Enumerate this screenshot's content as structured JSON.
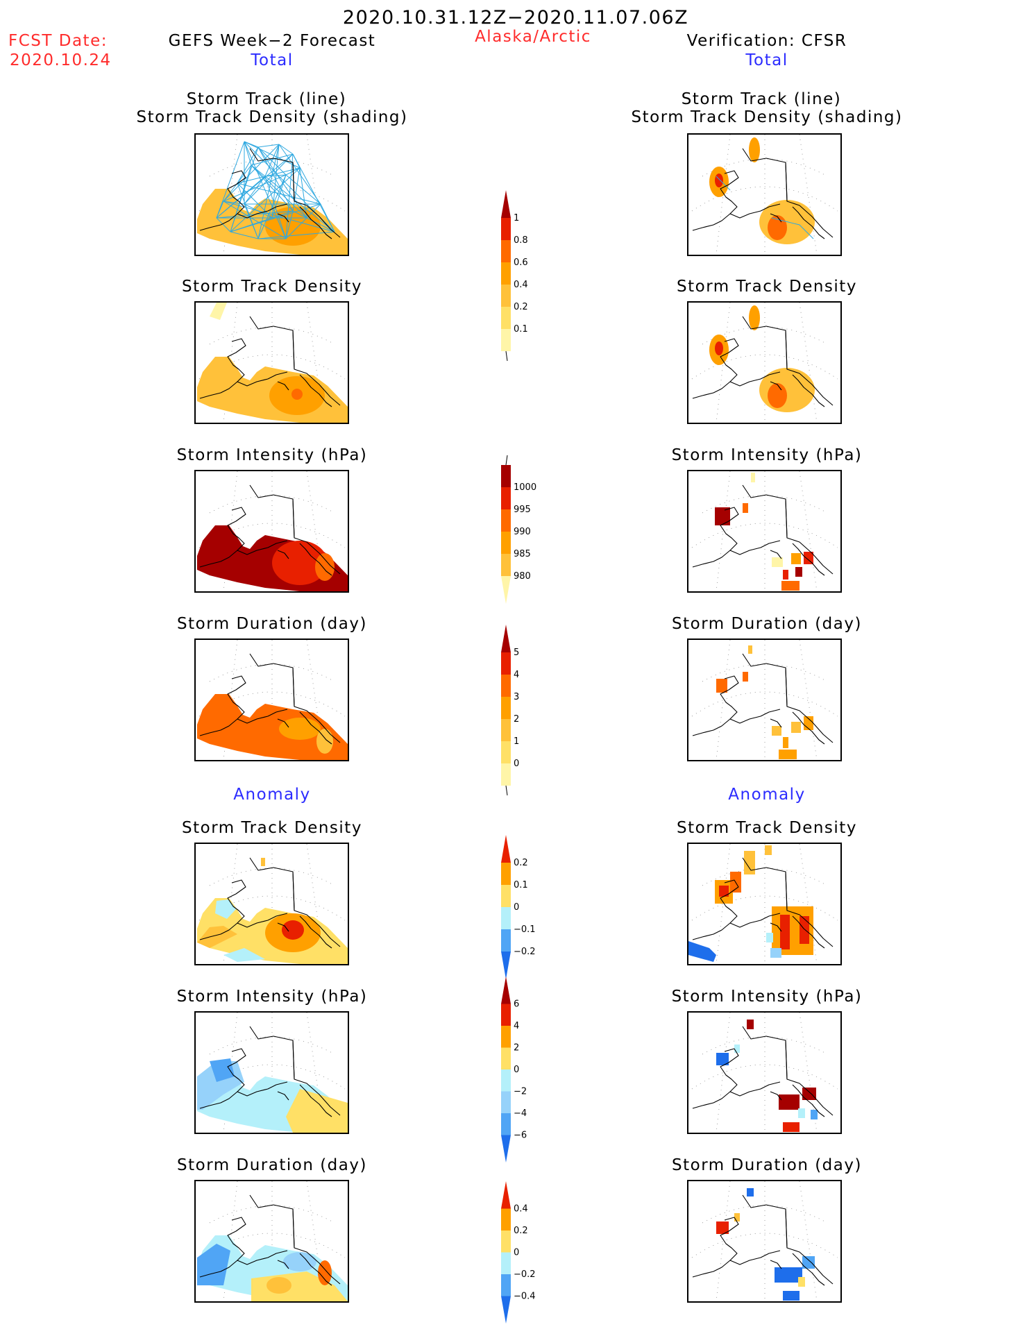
{
  "header": {
    "title": "2020.10.31.12Z−2020.11.07.06Z",
    "fcst_label": "FCST Date:",
    "fcst_date": "2020.10.24",
    "left_heading": "GEFS Week−2 Forecast",
    "region": "Alaska/Arctic",
    "right_heading": "Verification: CFSR",
    "left_total": "Total",
    "right_total": "Total",
    "left_anomaly": "Anomaly",
    "right_anomaly": "Anomaly"
  },
  "panels": {
    "p1_line1": "Storm Track (line)",
    "p1_line2": "Storm Track Density (shading)",
    "p2": "Storm Track Density",
    "p3": "Storm Intensity (hPa)",
    "p4": "Storm Duration (day)",
    "p5": "Storm Track Density",
    "p6": "Storm Intensity (hPa)",
    "p7": "Storm Duration (day)"
  },
  "colors": {
    "pale_yellow": "#fff5a8",
    "light_yellow": "#ffe066",
    "light_orange": "#ffc13a",
    "orange": "#ffa000",
    "dark_orange": "#ff6a00",
    "red": "#e82000",
    "dark_red": "#a50000",
    "light_cyan": "#b4f0fa",
    "light_blue": "#96d2fa",
    "mid_blue": "#50a5f5",
    "blue": "#1e6eeb",
    "track_line": "#2ea8e0"
  },
  "chart_data": [
    {
      "type": "heatmap",
      "name": "Storm Track Density colorbar",
      "levels": [
        0.1,
        0.2,
        0.4,
        0.6,
        0.8,
        1
      ],
      "tick_labels": [
        "0.1",
        "0.2",
        "0.4",
        "0.6",
        "0.8",
        "1"
      ]
    },
    {
      "type": "heatmap",
      "name": "Storm Intensity colorbar",
      "levels": [
        980,
        985,
        990,
        995,
        1000
      ],
      "tick_labels": [
        "980",
        "985",
        "990",
        "995",
        "1000"
      ]
    },
    {
      "type": "heatmap",
      "name": "Storm Duration colorbar",
      "levels": [
        0,
        1,
        2,
        3,
        4,
        5
      ],
      "tick_labels": [
        "0",
        "1",
        "2",
        "3",
        "4",
        "5"
      ]
    },
    {
      "type": "heatmap",
      "name": "Storm Track Density anomaly colorbar",
      "levels": [
        -0.2,
        -0.1,
        0,
        0.1,
        0.2
      ],
      "tick_labels": [
        "−0.2",
        "−0.1",
        "0",
        "0.1",
        "0.2"
      ]
    },
    {
      "type": "heatmap",
      "name": "Storm Intensity anomaly colorbar",
      "levels": [
        -6,
        -4,
        -2,
        0,
        2,
        4,
        6
      ],
      "tick_labels": [
        "−6",
        "−4",
        "−2",
        "0",
        "2",
        "4",
        "6"
      ]
    },
    {
      "type": "heatmap",
      "name": "Storm Duration anomaly colorbar",
      "levels": [
        -0.4,
        -0.2,
        0,
        0.2,
        0.4
      ],
      "tick_labels": [
        "−0.4",
        "−0.2",
        "0",
        "0.2",
        "0.4"
      ]
    }
  ]
}
